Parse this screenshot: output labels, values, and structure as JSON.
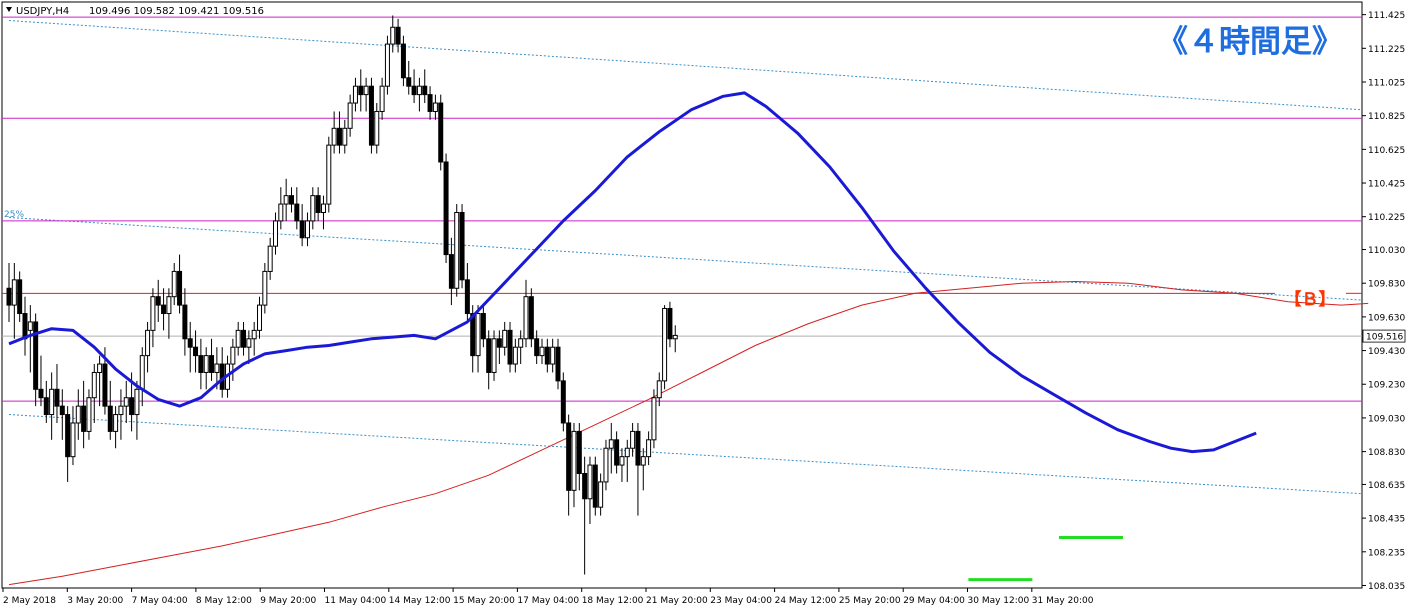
{
  "header": {
    "symbol": "USDJPY,H4",
    "ohlc": "109.496 109.582 109.421 109.516"
  },
  "annotations": {
    "timeframe_label": "《４時間足》",
    "b_label": "【Ｂ】",
    "fib_label": "25%"
  },
  "colors": {
    "candle_body_bull": "#ffffff",
    "candle_body_bear": "#000000",
    "candle_outline": "#000000",
    "sma_fast": "#1a1ad6",
    "sma_slow": "#d42020",
    "horizontal_lines": "#cc22cc",
    "b_line": "#e02020",
    "channel": "#3a8fc8",
    "current_price_line": "#b0b0b0",
    "bottom_markers": "#22dd22",
    "title_accent": "#1e6ee0",
    "b_accent": "#ff3300"
  },
  "chart_data": {
    "type": "candlestick",
    "symbol": "USDJPY",
    "timeframe": "H4",
    "current_price": 109.516,
    "y_ticks": [
      111.425,
      111.225,
      111.025,
      110.825,
      110.625,
      110.425,
      110.225,
      110.03,
      109.83,
      109.63,
      109.43,
      109.23,
      109.03,
      108.83,
      108.635,
      108.435,
      108.235,
      108.035
    ],
    "ylim": [
      108.02,
      111.5
    ],
    "x_labels": [
      "2 May 2018",
      "3 May 20:00",
      "7 May 04:00",
      "8 May 12:00",
      "9 May 20:00",
      "11 May 04:00",
      "14 May 12:00",
      "15 May 20:00",
      "17 May 04:00",
      "18 May 12:00",
      "21 May 20:00",
      "23 May 04:00",
      "24 May 12:00",
      "25 May 20:00",
      "29 May 04:00",
      "30 May 12:00",
      "31 May 20:00"
    ],
    "horizontal_levels": [
      111.41,
      110.81,
      110.2,
      109.13
    ],
    "b_level": 109.77,
    "candles": [
      [
        109.8,
        109.95,
        109.6,
        109.7
      ],
      [
        109.7,
        109.95,
        109.5,
        109.85
      ],
      [
        109.85,
        109.9,
        109.6,
        109.65
      ],
      [
        109.65,
        109.75,
        109.4,
        109.5
      ],
      [
        109.55,
        109.7,
        109.3,
        109.6
      ],
      [
        109.6,
        109.65,
        109.1,
        109.2
      ],
      [
        109.2,
        109.4,
        109.1,
        109.15
      ],
      [
        109.15,
        109.25,
        109.0,
        109.05
      ],
      [
        109.05,
        109.3,
        108.9,
        109.2
      ],
      [
        109.2,
        109.35,
        109.0,
        109.1
      ],
      [
        109.1,
        109.2,
        108.9,
        109.05
      ],
      [
        109.05,
        109.1,
        108.65,
        108.8
      ],
      [
        108.8,
        109.1,
        108.75,
        109.0
      ],
      [
        109.0,
        109.2,
        108.9,
        109.1
      ],
      [
        109.1,
        109.25,
        108.85,
        108.95
      ],
      [
        108.95,
        109.2,
        108.9,
        109.15
      ],
      [
        109.15,
        109.35,
        109.0,
        109.3
      ],
      [
        109.3,
        109.4,
        109.1,
        109.35
      ],
      [
        109.35,
        109.45,
        109.05,
        109.1
      ],
      [
        109.1,
        109.25,
        108.9,
        108.95
      ],
      [
        108.95,
        109.1,
        108.85,
        109.05
      ],
      [
        109.05,
        109.2,
        108.9,
        109.1
      ],
      [
        109.1,
        109.25,
        109.0,
        109.15
      ],
      [
        109.15,
        109.3,
        108.95,
        109.05
      ],
      [
        109.05,
        109.25,
        108.9,
        109.2
      ],
      [
        109.2,
        109.45,
        109.1,
        109.4
      ],
      [
        109.4,
        109.6,
        109.3,
        109.55
      ],
      [
        109.55,
        109.8,
        109.45,
        109.75
      ],
      [
        109.75,
        109.85,
        109.6,
        109.7
      ],
      [
        109.7,
        109.8,
        109.55,
        109.65
      ],
      [
        109.65,
        109.8,
        109.5,
        109.75
      ],
      [
        109.75,
        109.95,
        109.7,
        109.9
      ],
      [
        109.9,
        110.0,
        109.65,
        109.7
      ],
      [
        109.7,
        109.8,
        109.4,
        109.5
      ],
      [
        109.5,
        109.6,
        109.3,
        109.45
      ],
      [
        109.45,
        109.55,
        109.3,
        109.4
      ],
      [
        109.4,
        109.5,
        109.2,
        109.3
      ],
      [
        109.3,
        109.45,
        109.2,
        109.4
      ],
      [
        109.4,
        109.5,
        109.25,
        109.3
      ],
      [
        109.3,
        109.45,
        109.2,
        109.35
      ],
      [
        109.35,
        109.45,
        109.15,
        109.2
      ],
      [
        109.2,
        109.4,
        109.15,
        109.35
      ],
      [
        109.35,
        109.5,
        109.25,
        109.45
      ],
      [
        109.45,
        109.6,
        109.4,
        109.55
      ],
      [
        109.55,
        109.6,
        109.4,
        109.45
      ],
      [
        109.45,
        109.55,
        109.35,
        109.5
      ],
      [
        109.5,
        109.6,
        109.4,
        109.55
      ],
      [
        109.55,
        109.75,
        109.5,
        109.7
      ],
      [
        109.7,
        109.95,
        109.65,
        109.9
      ],
      [
        109.9,
        110.1,
        109.85,
        110.05
      ],
      [
        110.05,
        110.25,
        110.0,
        110.2
      ],
      [
        110.2,
        110.4,
        110.15,
        110.3
      ],
      [
        110.3,
        110.45,
        110.2,
        110.35
      ],
      [
        110.35,
        110.4,
        110.25,
        110.3
      ],
      [
        110.3,
        110.4,
        110.15,
        110.2
      ],
      [
        110.2,
        110.3,
        110.05,
        110.1
      ],
      [
        110.1,
        110.25,
        110.05,
        110.2
      ],
      [
        110.2,
        110.4,
        110.15,
        110.35
      ],
      [
        110.35,
        110.4,
        110.2,
        110.25
      ],
      [
        110.25,
        110.35,
        110.15,
        110.3
      ],
      [
        110.3,
        110.7,
        110.25,
        110.65
      ],
      [
        110.65,
        110.85,
        110.6,
        110.75
      ],
      [
        110.75,
        110.85,
        110.6,
        110.65
      ],
      [
        110.65,
        110.8,
        110.6,
        110.75
      ],
      [
        110.75,
        110.95,
        110.7,
        110.9
      ],
      [
        110.9,
        111.05,
        110.85,
        111.0
      ],
      [
        111.0,
        111.1,
        110.85,
        110.95
      ],
      [
        110.95,
        111.05,
        110.85,
        111.0
      ],
      [
        111.0,
        111.05,
        110.6,
        110.65
      ],
      [
        110.65,
        110.9,
        110.6,
        110.85
      ],
      [
        110.85,
        111.05,
        110.8,
        111.0
      ],
      [
        111.0,
        111.3,
        110.95,
        111.25
      ],
      [
        111.25,
        111.42,
        111.2,
        111.35
      ],
      [
        111.35,
        111.4,
        111.2,
        111.25
      ],
      [
        111.25,
        111.3,
        111.0,
        111.05
      ],
      [
        111.05,
        111.15,
        110.95,
        111.0
      ],
      [
        111.0,
        111.1,
        110.9,
        110.95
      ],
      [
        110.95,
        111.05,
        110.85,
        111.0
      ],
      [
        111.0,
        111.1,
        110.9,
        110.95
      ],
      [
        110.95,
        111.0,
        110.8,
        110.85
      ],
      [
        110.85,
        110.95,
        110.8,
        110.9
      ],
      [
        110.9,
        110.95,
        110.5,
        110.55
      ],
      [
        110.55,
        110.6,
        109.95,
        110.0
      ],
      [
        110.0,
        110.1,
        109.7,
        109.8
      ],
      [
        109.8,
        110.3,
        109.75,
        110.25
      ],
      [
        110.25,
        110.3,
        109.8,
        109.85
      ],
      [
        109.85,
        109.95,
        109.6,
        109.65
      ],
      [
        109.65,
        109.7,
        109.3,
        109.4
      ],
      [
        109.4,
        109.7,
        109.3,
        109.65
      ],
      [
        109.65,
        109.7,
        109.45,
        109.5
      ],
      [
        109.5,
        109.55,
        109.2,
        109.3
      ],
      [
        109.3,
        109.55,
        109.25,
        109.5
      ],
      [
        109.5,
        109.55,
        109.35,
        109.45
      ],
      [
        109.45,
        109.6,
        109.4,
        109.55
      ],
      [
        109.55,
        109.6,
        109.3,
        109.35
      ],
      [
        109.35,
        109.5,
        109.3,
        109.45
      ],
      [
        109.45,
        109.55,
        109.35,
        109.5
      ],
      [
        109.5,
        109.85,
        109.45,
        109.75
      ],
      [
        109.75,
        109.8,
        109.45,
        109.5
      ],
      [
        109.5,
        109.55,
        109.35,
        109.4
      ],
      [
        109.4,
        109.5,
        109.35,
        109.45
      ],
      [
        109.45,
        109.5,
        109.3,
        109.35
      ],
      [
        109.35,
        109.5,
        109.3,
        109.45
      ],
      [
        109.45,
        109.5,
        109.2,
        109.25
      ],
      [
        109.25,
        109.3,
        108.95,
        109.0
      ],
      [
        109.0,
        109.05,
        108.45,
        108.6
      ],
      [
        108.6,
        109.0,
        108.5,
        108.95
      ],
      [
        108.95,
        109.0,
        108.6,
        108.7
      ],
      [
        108.7,
        108.8,
        108.1,
        108.55
      ],
      [
        108.55,
        108.8,
        108.4,
        108.75
      ],
      [
        108.75,
        108.8,
        108.45,
        108.5
      ],
      [
        108.5,
        108.7,
        108.45,
        108.65
      ],
      [
        108.65,
        108.9,
        108.6,
        108.85
      ],
      [
        108.85,
        109.0,
        108.7,
        108.9
      ],
      [
        108.9,
        108.95,
        108.7,
        108.75
      ],
      [
        108.75,
        108.85,
        108.65,
        108.8
      ],
      [
        108.8,
        108.9,
        108.65,
        108.85
      ],
      [
        108.85,
        109.0,
        108.8,
        108.95
      ],
      [
        108.95,
        109.0,
        108.45,
        108.75
      ],
      [
        108.75,
        108.85,
        108.6,
        108.8
      ],
      [
        108.8,
        108.95,
        108.75,
        108.9
      ],
      [
        108.9,
        109.2,
        108.85,
        109.15
      ],
      [
        109.15,
        109.3,
        109.1,
        109.25
      ],
      [
        109.25,
        109.7,
        109.2,
        109.68
      ],
      [
        109.68,
        109.72,
        109.45,
        109.5
      ],
      [
        109.5,
        109.58,
        109.42,
        109.52
      ]
    ],
    "sma_fast": [
      [
        0,
        109.47
      ],
      [
        4,
        109.52
      ],
      [
        8,
        109.56
      ],
      [
        12,
        109.55
      ],
      [
        16,
        109.45
      ],
      [
        20,
        109.32
      ],
      [
        24,
        109.22
      ],
      [
        28,
        109.14
      ],
      [
        32,
        109.1
      ],
      [
        36,
        109.15
      ],
      [
        40,
        109.26
      ],
      [
        44,
        109.35
      ],
      [
        48,
        109.41
      ],
      [
        52,
        109.43
      ],
      [
        56,
        109.45
      ],
      [
        60,
        109.46
      ],
      [
        64,
        109.48
      ],
      [
        68,
        109.5
      ],
      [
        72,
        109.51
      ],
      [
        76,
        109.52
      ],
      [
        80,
        109.5
      ],
      [
        86,
        109.6
      ],
      [
        92,
        109.8
      ],
      [
        98,
        110.0
      ],
      [
        104,
        110.2
      ],
      [
        110,
        110.38
      ],
      [
        116,
        110.58
      ],
      [
        122,
        110.73
      ],
      [
        128,
        110.86
      ],
      [
        134,
        110.94
      ],
      [
        138,
        110.96
      ],
      [
        142,
        110.88
      ],
      [
        148,
        110.72
      ],
      [
        154,
        110.52
      ],
      [
        160,
        110.28
      ],
      [
        166,
        110.02
      ],
      [
        172,
        109.8
      ],
      [
        178,
        109.6
      ],
      [
        184,
        109.42
      ],
      [
        190,
        109.28
      ],
      [
        196,
        109.17
      ],
      [
        202,
        109.06
      ],
      [
        208,
        108.96
      ],
      [
        214,
        108.89
      ],
      [
        218,
        108.85
      ],
      [
        222,
        108.83
      ],
      [
        226,
        108.84
      ],
      [
        230,
        108.89
      ],
      [
        234,
        108.94
      ]
    ],
    "sma_slow": [
      [
        0,
        108.04
      ],
      [
        10,
        108.09
      ],
      [
        20,
        108.15
      ],
      [
        30,
        108.21
      ],
      [
        40,
        108.27
      ],
      [
        50,
        108.34
      ],
      [
        60,
        108.41
      ],
      [
        70,
        108.5
      ],
      [
        80,
        108.58
      ],
      [
        90,
        108.69
      ],
      [
        100,
        108.84
      ],
      [
        110,
        108.99
      ],
      [
        120,
        109.14
      ],
      [
        130,
        109.3
      ],
      [
        140,
        109.46
      ],
      [
        150,
        109.59
      ],
      [
        160,
        109.7
      ],
      [
        170,
        109.77
      ],
      [
        180,
        109.8
      ],
      [
        190,
        109.83
      ],
      [
        200,
        109.84
      ],
      [
        210,
        109.83
      ],
      [
        220,
        109.79
      ],
      [
        230,
        109.77
      ],
      [
        240,
        109.72
      ],
      [
        250,
        109.7
      ],
      [
        255,
        109.71
      ]
    ],
    "channel_lines": [
      [
        [
          0,
          111.39
        ],
        [
          266,
          110.86
        ]
      ],
      [
        [
          0,
          110.22
        ],
        [
          266,
          109.73
        ]
      ],
      [
        [
          0,
          109.05
        ],
        [
          266,
          108.58
        ]
      ]
    ],
    "bottom_markers": [
      {
        "x_from": 180,
        "x_to": 192,
        "y": 108.07
      },
      {
        "x_from": 197,
        "x_to": 209,
        "y": 108.32
      }
    ]
  }
}
